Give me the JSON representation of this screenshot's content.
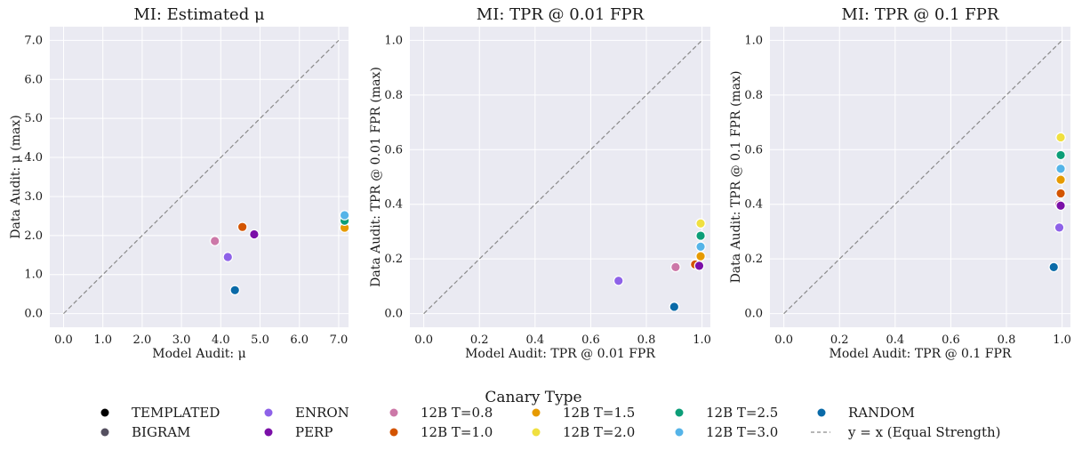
{
  "chart_data": [
    {
      "type": "scatter",
      "title": "MI: Estimated μ",
      "xlabel": "Model Audit: μ",
      "ylabel": "Data Audit: μ (max)",
      "xlim": [
        -0.35,
        7.25
      ],
      "ylim": [
        -0.35,
        7.35
      ],
      "xticks": [
        0,
        1,
        2,
        3,
        4,
        5,
        6,
        7
      ],
      "yticks": [
        0,
        1,
        2,
        3,
        4,
        5,
        6,
        7
      ],
      "tick_labels": [
        "0.0",
        "1.0",
        "2.0",
        "3.0",
        "4.0",
        "5.0",
        "6.0",
        "7.0"
      ],
      "diagonal": [
        0,
        7
      ],
      "points": [
        {
          "series": "12B T=0.8",
          "x": 3.85,
          "y": 1.86
        },
        {
          "series": "ENRON",
          "x": 4.18,
          "y": 1.45
        },
        {
          "series": "RANDOM",
          "x": 4.36,
          "y": 0.6
        },
        {
          "series": "12B T=1.0",
          "x": 4.55,
          "y": 2.22
        },
        {
          "series": "PERP",
          "x": 4.85,
          "y": 2.03
        },
        {
          "series": "12B T=1.5",
          "x": 7.15,
          "y": 2.2
        },
        {
          "series": "12B T=2.5",
          "x": 7.15,
          "y": 2.38
        },
        {
          "series": "12B T=3.0",
          "x": 7.15,
          "y": 2.52
        }
      ]
    },
    {
      "type": "scatter",
      "title": "MI: TPR @ 0.01 FPR",
      "xlabel": "Model Audit: TPR @ 0.01 FPR",
      "ylabel": "Data Audit: TPR @ 0.01 FPR (max)",
      "xlim": [
        -0.05,
        1.03
      ],
      "ylim": [
        -0.05,
        1.05
      ],
      "xticks": [
        0,
        0.2,
        0.4,
        0.6,
        0.8,
        1.0
      ],
      "yticks": [
        0,
        0.2,
        0.4,
        0.6,
        0.8,
        1.0
      ],
      "tick_labels": [
        "0.0",
        "0.2",
        "0.4",
        "0.6",
        "0.8",
        "1.0"
      ],
      "diagonal": [
        0,
        1
      ],
      "points": [
        {
          "series": "ENRON",
          "x": 0.7,
          "y": 0.12
        },
        {
          "series": "RANDOM",
          "x": 0.9,
          "y": 0.025
        },
        {
          "series": "12B T=0.8",
          "x": 0.905,
          "y": 0.17
        },
        {
          "series": "12B T=1.0",
          "x": 0.975,
          "y": 0.18
        },
        {
          "series": "PERP",
          "x": 0.99,
          "y": 0.175
        },
        {
          "series": "12B T=1.5",
          "x": 0.995,
          "y": 0.21
        },
        {
          "series": "12B T=3.0",
          "x": 0.995,
          "y": 0.245
        },
        {
          "series": "12B T=2.5",
          "x": 0.995,
          "y": 0.285
        },
        {
          "series": "12B T=2.0",
          "x": 0.995,
          "y": 0.33
        }
      ]
    },
    {
      "type": "scatter",
      "title": "MI: TPR @ 0.1 FPR",
      "xlabel": "Model Audit: TPR @ 0.1 FPR",
      "ylabel": "Data Audit: TPR @ 0.1 FPR (max)",
      "xlim": [
        -0.05,
        1.03
      ],
      "ylim": [
        -0.05,
        1.05
      ],
      "xticks": [
        0,
        0.2,
        0.4,
        0.6,
        0.8,
        1.0
      ],
      "yticks": [
        0,
        0.2,
        0.4,
        0.6,
        0.8,
        1.0
      ],
      "tick_labels": [
        "0.0",
        "0.2",
        "0.4",
        "0.6",
        "0.8",
        "1.0"
      ],
      "diagonal": [
        0,
        1
      ],
      "points": [
        {
          "series": "RANDOM",
          "x": 0.97,
          "y": 0.17
        },
        {
          "series": "ENRON",
          "x": 0.99,
          "y": 0.315
        },
        {
          "series": "12B T=0.8",
          "x": 0.99,
          "y": 0.4
        },
        {
          "series": "PERP",
          "x": 0.995,
          "y": 0.395
        },
        {
          "series": "12B T=1.0",
          "x": 0.995,
          "y": 0.44
        },
        {
          "series": "12B T=1.5",
          "x": 0.995,
          "y": 0.49
        },
        {
          "series": "12B T=3.0",
          "x": 0.995,
          "y": 0.53
        },
        {
          "series": "12B T=2.5",
          "x": 0.995,
          "y": 0.58
        },
        {
          "series": "12B T=2.0",
          "x": 0.995,
          "y": 0.645
        }
      ]
    }
  ],
  "legend": {
    "title": "Canary Type",
    "placement": "bottom",
    "items": [
      {
        "label": "TEMPLATED",
        "color": "#000000",
        "marker": "dot"
      },
      {
        "label": "BIGRAM",
        "color": "#555060",
        "marker": "dot"
      },
      {
        "label": "ENRON",
        "color": "#8e62e8",
        "marker": "dot"
      },
      {
        "label": "PERP",
        "color": "#7b0fa8",
        "marker": "dot"
      },
      {
        "label": "12B T=0.8",
        "color": "#cc78a8",
        "marker": "dot"
      },
      {
        "label": "12B T=1.0",
        "color": "#d35400",
        "marker": "dot"
      },
      {
        "label": "12B T=1.5",
        "color": "#e69a00",
        "marker": "dot"
      },
      {
        "label": "12B T=2.0",
        "color": "#f0e040",
        "marker": "dot"
      },
      {
        "label": "12B T=2.5",
        "color": "#0c9e78",
        "marker": "dot"
      },
      {
        "label": "12B T=3.0",
        "color": "#55b4e8",
        "marker": "dot"
      },
      {
        "label": "RANDOM",
        "color": "#0a6aa8",
        "marker": "dot"
      },
      {
        "label": "y = x (Equal Strength)",
        "color": "#8a8a8a",
        "marker": "dashed-line"
      }
    ]
  },
  "style": {
    "panel_bg": "#eaeaf2",
    "grid_color": "#ffffff",
    "grid": true,
    "diagonal_color": "#8a8a8a"
  }
}
